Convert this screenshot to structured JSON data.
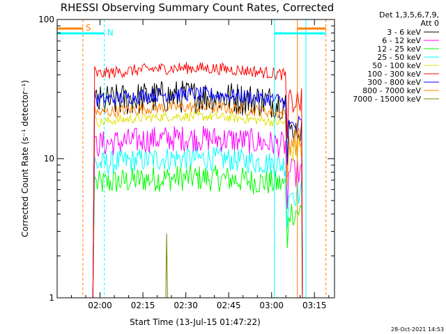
{
  "chart_data": {
    "type": "line",
    "title": "RHESSI Observing Summary Count Rates, Corrected",
    "xlabel": "Start Time (13-Jul-15 01:47:22)",
    "ylabel": "Corrected Count Rate (s⁻¹ detector⁻¹)",
    "yscale": "log",
    "ylim": [
      1,
      100
    ],
    "xlim_minutes": [
      -2,
      95
    ],
    "xticks": [
      {
        "label": "02:00",
        "t": 13
      },
      {
        "label": "02:15",
        "t": 28
      },
      {
        "label": "02:30",
        "t": 43
      },
      {
        "label": "02:45",
        "t": 58
      },
      {
        "label": "03:00",
        "t": 73
      },
      {
        "label": "03:15",
        "t": 88
      }
    ],
    "yticks": [
      {
        "label": "1",
        "v": 1
      },
      {
        "label": "10",
        "v": 10
      },
      {
        "label": "100",
        "v": 100
      }
    ],
    "legend_header": [
      "Det 1,3,5,6,7,9,",
      "Att 0"
    ],
    "legend_position": "right",
    "flags": [
      {
        "label": "S",
        "color": "#ff8000"
      },
      {
        "label": "N",
        "color": "#00ffff"
      }
    ],
    "series": [
      {
        "name": "3 - 6 keV",
        "color": "#000000",
        "level": 25
      },
      {
        "name": "6 - 12 keV",
        "color": "#ff00ff",
        "level": 12.5
      },
      {
        "name": "12 - 25 keV",
        "color": "#00ff00",
        "level": 6.5
      },
      {
        "name": "25 - 50 keV",
        "color": "#00ffff",
        "level": 9
      },
      {
        "name": "50 - 100 keV",
        "color": "#e0e000",
        "level": 18
      },
      {
        "name": "100 - 300 keV",
        "color": "#ff0000",
        "level": 40
      },
      {
        "name": "300 - 800 keV",
        "color": "#0000ff",
        "level": 26
      },
      {
        "name": "800 - 7000 keV",
        "color": "#ff8000",
        "level": 21
      },
      {
        "name": "7000 - 15000 keV",
        "color": "#808000",
        "level": 0.9
      }
    ],
    "vlines": [
      {
        "t": 7,
        "color": "#ff8000",
        "style": "dashed"
      },
      {
        "t": 14.5,
        "color": "#00ffff",
        "style": "dashed"
      },
      {
        "t": 74,
        "color": "#00ffff",
        "style": "solid"
      },
      {
        "t": 82,
        "color": "#ff8000",
        "style": "solid"
      },
      {
        "t": 85,
        "color": "#00ffff",
        "style": "solid"
      },
      {
        "t": 92,
        "color": "#ff8000",
        "style": "dashed"
      }
    ]
  },
  "footer": {
    "timestamp": "28-Oct-2021 14:53"
  }
}
